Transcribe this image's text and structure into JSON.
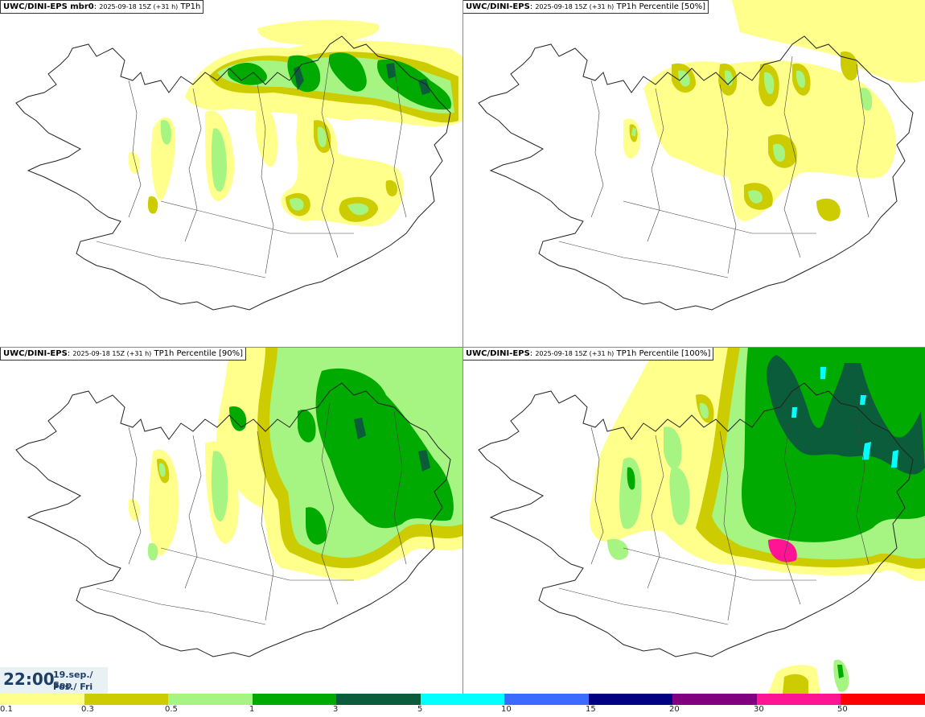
{
  "panels": [
    {
      "model": "UWC/DINI-EPS mbr0",
      "datetime": "2025-09-18 15Z (+31 h)",
      "field": "TP1h"
    },
    {
      "model": "UWC/DINI-EPS",
      "datetime": "2025-09-18 15Z (+31 h)",
      "field": "TP1h Percentile [50%]"
    },
    {
      "model": "UWC/DINI-EPS",
      "datetime": "2025-09-18 15Z (+31 h)",
      "field": "TP1h Percentile [90%]"
    },
    {
      "model": "UWC/DINI-EPS",
      "datetime": "2025-09-18 15Z (+31 h)",
      "field": "TP1h Percentile [100%]"
    }
  ],
  "valid_time": {
    "time": "22:00",
    "date_line1": "19.sep./ Sep",
    "date_line2": "Fös./ Fri"
  },
  "legend": {
    "colors": [
      "#ffff8c",
      "#cccc00",
      "#a6f583",
      "#00aa00",
      "#0a5c3a",
      "#00ffff",
      "#3c6cff",
      "#000080",
      "#800080",
      "#ff1493",
      "#ff0000"
    ],
    "ticks": [
      "0.1",
      "0.3",
      "0.5",
      "1",
      "3",
      "5",
      "10",
      "15",
      "20",
      "30",
      "50"
    ]
  }
}
